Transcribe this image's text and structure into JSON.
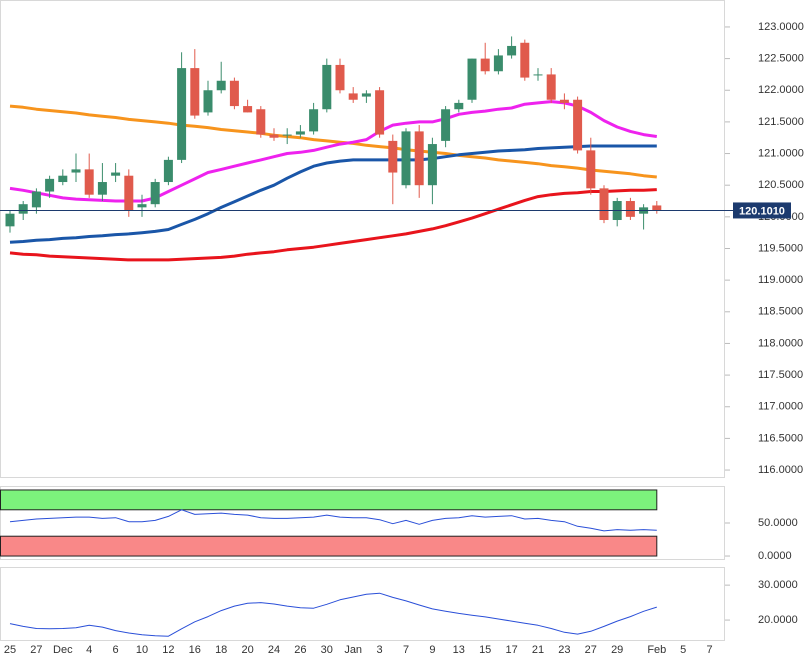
{
  "chart_data": [
    {
      "type": "candlestick",
      "categories": [
        "25",
        null,
        "27",
        null,
        "Dec",
        null,
        "4",
        null,
        "6",
        null,
        "10",
        null,
        "12",
        null,
        "16",
        null,
        "18",
        null,
        "20",
        null,
        "24",
        null,
        "26",
        null,
        "30",
        null,
        "Jan",
        null,
        "3",
        null,
        "7",
        null,
        "9",
        null,
        "13",
        null,
        "15",
        null,
        "17",
        null,
        "21",
        null,
        "23",
        null,
        "27",
        null,
        "29",
        null,
        null,
        "Feb",
        null,
        "5",
        null,
        "7"
      ],
      "open": [
        119.85,
        120.05,
        120.15,
        120.4,
        120.55,
        120.7,
        120.75,
        120.35,
        120.65,
        120.65,
        120.15,
        120.2,
        120.55,
        120.9,
        122.35,
        121.65,
        122.0,
        122.15,
        121.75,
        121.7,
        121.3,
        121.3,
        121.3,
        121.35,
        121.7,
        122.4,
        121.95,
        121.9,
        122.0,
        121.2,
        120.5,
        121.35,
        120.5,
        121.2,
        121.7,
        121.85,
        122.5,
        122.3,
        122.55,
        122.75,
        122.25,
        122.25,
        121.85,
        121.85,
        121.05,
        120.45,
        119.95,
        120.25,
        120.05,
        120.18,
        null,
        null,
        null,
        null
      ],
      "high": [
        120.1,
        120.25,
        120.45,
        120.65,
        120.75,
        121.0,
        121.0,
        120.85,
        120.85,
        120.75,
        120.35,
        120.6,
        120.95,
        122.6,
        122.65,
        122.15,
        122.45,
        122.2,
        121.85,
        121.75,
        121.4,
        121.4,
        121.45,
        121.8,
        122.5,
        122.5,
        122.05,
        122.0,
        122.05,
        121.3,
        121.4,
        121.45,
        121.25,
        121.75,
        121.85,
        122.5,
        122.75,
        122.65,
        122.85,
        122.8,
        122.35,
        122.35,
        121.95,
        121.9,
        121.25,
        120.5,
        120.3,
        120.3,
        120.2,
        120.25,
        null,
        null,
        null,
        null
      ],
      "low": [
        119.75,
        119.95,
        120.05,
        120.3,
        120.5,
        120.55,
        120.3,
        120.25,
        120.55,
        120.0,
        120.0,
        120.15,
        120.5,
        120.85,
        121.55,
        121.6,
        121.95,
        121.7,
        121.65,
        121.25,
        121.2,
        121.15,
        121.25,
        121.3,
        121.65,
        121.95,
        121.8,
        121.8,
        121.25,
        120.2,
        120.45,
        120.3,
        120.2,
        121.1,
        121.65,
        121.8,
        122.25,
        122.25,
        122.5,
        122.15,
        122.15,
        121.8,
        121.7,
        121.0,
        120.35,
        119.9,
        119.85,
        119.95,
        119.8,
        120.05,
        null,
        null,
        null,
        null
      ],
      "close": [
        120.05,
        120.2,
        120.4,
        120.6,
        120.65,
        120.75,
        120.35,
        120.55,
        120.7,
        120.1,
        120.2,
        120.55,
        120.9,
        122.35,
        121.6,
        122.0,
        122.15,
        121.75,
        121.65,
        121.3,
        121.25,
        121.3,
        121.35,
        121.7,
        122.4,
        122.0,
        121.85,
        121.95,
        121.3,
        120.7,
        121.35,
        120.5,
        121.15,
        121.7,
        121.8,
        122.5,
        122.3,
        122.55,
        122.7,
        122.2,
        122.25,
        121.85,
        121.8,
        121.05,
        120.45,
        119.95,
        120.25,
        120.0,
        120.15,
        120.1,
        null,
        null,
        null,
        null
      ],
      "up_color": "#3a8c6c",
      "down_color": "#e05a4c",
      "series": [
        {
          "color": "#f7941d",
          "values": [
            121.75,
            121.73,
            121.7,
            121.68,
            121.66,
            121.64,
            121.61,
            121.59,
            121.57,
            121.54,
            121.52,
            121.5,
            121.48,
            121.45,
            121.43,
            121.41,
            121.38,
            121.36,
            121.34,
            121.32,
            121.29,
            121.27,
            121.25,
            121.22,
            121.2,
            121.18,
            121.16,
            121.13,
            121.11,
            121.09,
            121.06,
            121.04,
            121.02,
            121.0,
            120.97,
            120.95,
            120.93,
            120.9,
            120.88,
            120.86,
            120.84,
            120.81,
            120.79,
            120.77,
            120.74,
            120.72,
            120.7,
            120.68,
            120.65,
            120.63,
            null,
            null,
            null,
            null
          ]
        },
        {
          "color": "#1a56a8",
          "values": [
            119.6,
            119.61,
            119.63,
            119.64,
            119.66,
            119.67,
            119.69,
            119.7,
            119.72,
            119.73,
            119.75,
            119.77,
            119.8,
            119.88,
            119.96,
            120.05,
            120.15,
            120.24,
            120.33,
            120.42,
            120.5,
            120.61,
            120.71,
            120.8,
            120.85,
            120.88,
            120.9,
            120.9,
            120.9,
            120.9,
            120.9,
            120.9,
            120.92,
            120.95,
            120.98,
            121.0,
            121.02,
            121.04,
            121.05,
            121.06,
            121.08,
            121.09,
            121.1,
            121.11,
            121.12,
            121.12,
            121.12,
            121.12,
            121.12,
            121.12,
            null,
            null,
            null,
            null
          ]
        },
        {
          "color": "#ee22ee",
          "values": [
            120.45,
            120.42,
            120.38,
            120.34,
            120.3,
            120.28,
            120.27,
            120.26,
            120.25,
            120.25,
            120.25,
            120.3,
            120.4,
            120.5,
            120.6,
            120.7,
            120.75,
            120.8,
            120.85,
            120.9,
            120.95,
            121.0,
            121.02,
            121.05,
            121.1,
            121.15,
            121.18,
            121.22,
            121.35,
            121.45,
            121.48,
            121.5,
            121.5,
            121.55,
            121.62,
            121.65,
            121.67,
            121.7,
            121.72,
            121.78,
            121.8,
            121.82,
            121.8,
            121.75,
            121.65,
            121.52,
            121.42,
            121.35,
            121.3,
            121.27,
            null,
            null,
            null,
            null
          ]
        },
        {
          "color": "#e8141c",
          "values": [
            119.43,
            119.41,
            119.4,
            119.38,
            119.37,
            119.36,
            119.35,
            119.34,
            119.33,
            119.32,
            119.32,
            119.32,
            119.32,
            119.33,
            119.34,
            119.35,
            119.36,
            119.38,
            119.41,
            119.43,
            119.45,
            119.48,
            119.5,
            119.52,
            119.55,
            119.58,
            119.61,
            119.64,
            119.67,
            119.7,
            119.73,
            119.77,
            119.81,
            119.86,
            119.92,
            119.98,
            120.05,
            120.12,
            120.19,
            120.26,
            120.32,
            120.35,
            120.37,
            120.38,
            120.4,
            120.4,
            120.41,
            120.42,
            120.42,
            120.43,
            null,
            null,
            null,
            null
          ]
        }
      ],
      "ylim": [
        115.89,
        123.41
      ],
      "yticks": [
        {
          "value": 116,
          "label": "116.0000"
        },
        {
          "value": 116.5,
          "label": "116.5000"
        },
        {
          "value": 117,
          "label": "117.0000"
        },
        {
          "value": 117.5,
          "label": "117.5000"
        },
        {
          "value": 118,
          "label": "118.0000"
        },
        {
          "value": 118.5,
          "label": "118.5000"
        },
        {
          "value": 119,
          "label": "119.0000"
        },
        {
          "value": 119.5,
          "label": "119.5000"
        },
        {
          "value": 120,
          "label": "120.0000"
        },
        {
          "value": 120.5,
          "label": "120.5000"
        },
        {
          "value": 121,
          "label": "121.0000"
        },
        {
          "value": 121.5,
          "label": "121.5000"
        },
        {
          "value": 122,
          "label": "122.0000"
        },
        {
          "value": 122.5,
          "label": "122.5000"
        },
        {
          "value": 123,
          "label": "123.0000"
        }
      ],
      "last": {
        "value": 120.101,
        "label": "120.1010"
      },
      "last_color": "#1c3a6e"
    },
    {
      "type": "line",
      "color": "#2a4fd8",
      "values": [
        52,
        54,
        56,
        57,
        58,
        59,
        59,
        57,
        58,
        52,
        52,
        54,
        60,
        70,
        63,
        64,
        65,
        63,
        62,
        58,
        57,
        57,
        58,
        59,
        62,
        59,
        58,
        58,
        55,
        49,
        54,
        48,
        54,
        57,
        58,
        61,
        59,
        60,
        61,
        56,
        57,
        54,
        52,
        45,
        42,
        38,
        40,
        39,
        40,
        39,
        null,
        null,
        null,
        null
      ],
      "bands": [
        {
          "range": [
            70,
            100
          ],
          "color": "#7cf27c"
        },
        {
          "range": [
            0,
            30
          ],
          "color": "#f98888"
        }
      ],
      "ylim": [
        -4.5,
        104.5
      ],
      "yticks": [
        {
          "value": 0,
          "label": "0.0000"
        },
        {
          "value": 50,
          "label": "50.0000"
        }
      ]
    },
    {
      "type": "line",
      "color": "#2a4fd8",
      "values": [
        19.0,
        18.2,
        17.6,
        17.5,
        17.6,
        17.8,
        18.5,
        18.0,
        17.0,
        16.3,
        15.8,
        15.5,
        15.4,
        17.5,
        19.5,
        21.0,
        22.7,
        24.0,
        24.8,
        25.0,
        24.6,
        24.0,
        23.5,
        23.4,
        24.5,
        25.8,
        26.6,
        27.4,
        27.7,
        26.5,
        25.5,
        24.3,
        23.2,
        22.5,
        21.9,
        21.4,
        20.9,
        20.3,
        19.7,
        19.1,
        18.5,
        17.6,
        16.5,
        16.0,
        16.8,
        18.2,
        19.7,
        21.0,
        22.5,
        23.7,
        null,
        null,
        null,
        null
      ],
      "ylim": [
        14.3,
        34.9
      ],
      "yticks": [
        {
          "value": 20,
          "label": "20.0000"
        },
        {
          "value": 30,
          "label": "30.0000"
        }
      ]
    }
  ]
}
